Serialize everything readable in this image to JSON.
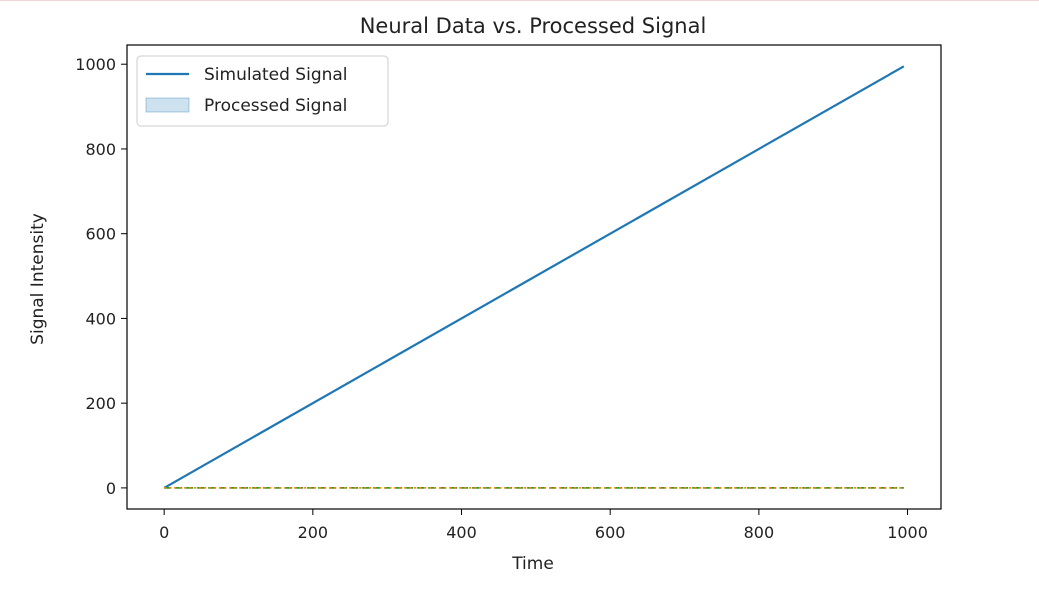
{
  "chart_data": {
    "type": "line",
    "title": "Neural Data vs. Processed Signal",
    "xlabel": "Time",
    "ylabel": "Signal Intensity",
    "xlim": [
      -50,
      1045
    ],
    "ylim": [
      -49.8,
      1045.35
    ],
    "xticks": [
      0,
      200,
      400,
      600,
      800,
      1000
    ],
    "yticks": [
      0,
      200,
      400,
      600,
      800,
      1000
    ],
    "xtick_labels": [
      "0",
      "200",
      "400",
      "600",
      "800",
      "1000"
    ],
    "ytick_labels": [
      "0",
      "200",
      "400",
      "600",
      "800",
      "1000"
    ],
    "grid": false,
    "legend_position": "top-left",
    "legend": [
      {
        "name": "Simulated Signal",
        "style": "line",
        "color": "#1f77b4"
      },
      {
        "name": "Processed Signal",
        "style": "patch",
        "color": "#1f77b4"
      }
    ],
    "series": [
      {
        "name": "Simulated Signal",
        "style": "solid",
        "color": "#1f77b4",
        "x": [
          0,
          995
        ],
        "y": [
          0,
          995
        ]
      },
      {
        "name": "",
        "style": "dashed",
        "color": "#2ca02c",
        "x": [
          0,
          100,
          200,
          300,
          400,
          500,
          600,
          700,
          800,
          900,
          995
        ],
        "y": [
          0,
          0,
          0,
          0,
          0,
          0,
          0,
          0,
          0,
          0,
          0
        ]
      },
      {
        "name": "",
        "style": "dotted",
        "color": "#ff7f0e",
        "x": [
          0,
          100,
          200,
          300,
          400,
          500,
          600,
          700,
          800,
          900,
          995
        ],
        "y": [
          0,
          0,
          0,
          0,
          0,
          0,
          0,
          0,
          0,
          0,
          0
        ]
      }
    ]
  }
}
